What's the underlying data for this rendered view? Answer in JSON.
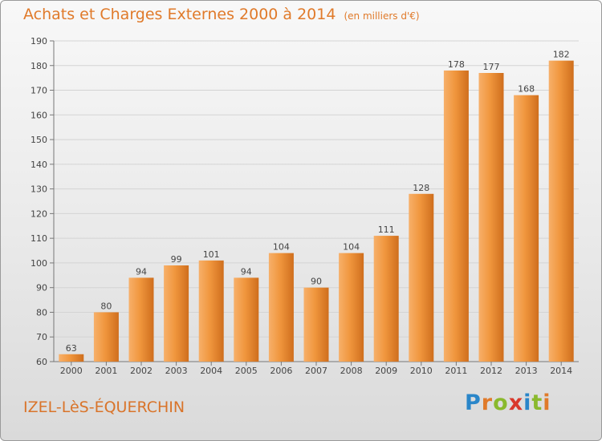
{
  "title": "Achats et Charges Externes 2000 à 2014",
  "subtitle": "(en milliers d'€)",
  "commune": "IZEL-LèS-ÉQUERCHIN",
  "brand": {
    "letters": [
      "P",
      "r",
      "o",
      "x",
      "i",
      "t",
      "i"
    ],
    "colors": [
      "#2a86c9",
      "#e07a2a",
      "#8ab92d",
      "#d9382b",
      "#2a86c9",
      "#8ab92d",
      "#e07a2a"
    ]
  },
  "colors": {
    "bar": "#e68a33",
    "label": "#444444",
    "grid": "#d4d4d4",
    "title": "#e07a2a"
  },
  "chart_data": {
    "type": "bar",
    "categories": [
      "2000",
      "2001",
      "2002",
      "2003",
      "2004",
      "2005",
      "2006",
      "2007",
      "2008",
      "2009",
      "2010",
      "2011",
      "2012",
      "2013",
      "2014"
    ],
    "values": [
      63,
      80,
      94,
      99,
      101,
      94,
      104,
      90,
      104,
      111,
      128,
      178,
      177,
      168,
      182
    ],
    "ylim": [
      60,
      190
    ],
    "yticks": [
      60,
      70,
      80,
      90,
      100,
      110,
      120,
      130,
      140,
      150,
      160,
      170,
      180,
      190
    ],
    "grid": true
  }
}
